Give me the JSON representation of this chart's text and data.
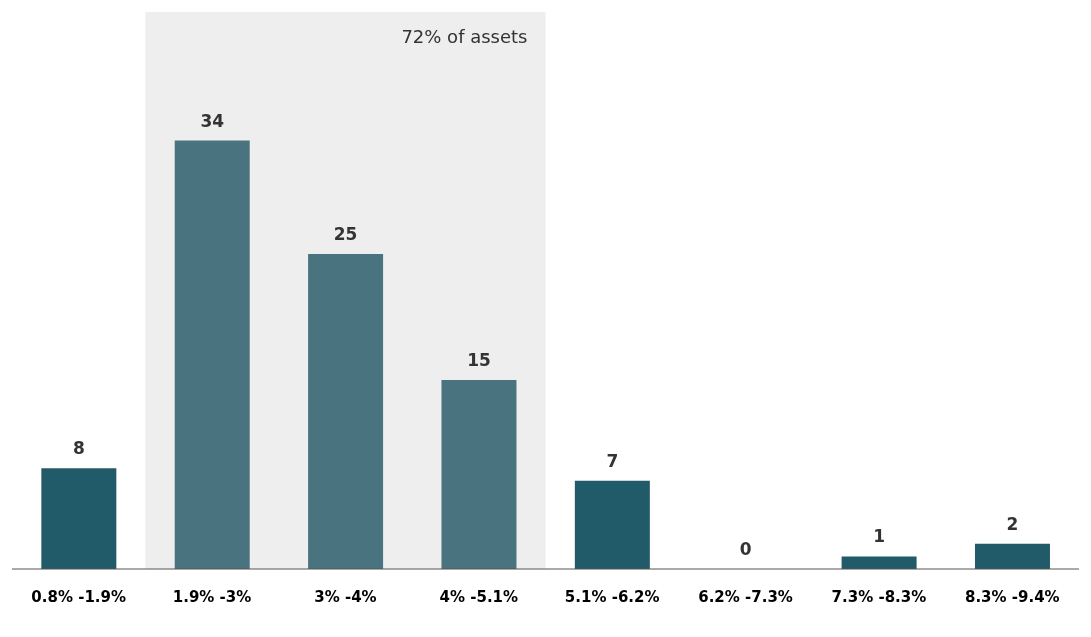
{
  "chart_data": {
    "type": "bar",
    "categories": [
      "0.8% -1.9%",
      "1.9% -3%",
      "3% -4%",
      "4% -5.1%",
      "5.1% -6.2%",
      "6.2% -7.3%",
      "7.3% -8.3%",
      "8.3% -9.4%"
    ],
    "values": [
      8,
      34,
      25,
      15,
      7,
      0,
      1,
      2
    ],
    "colors": [
      "#215a69",
      "#4a7380",
      "#4a7380",
      "#4a7380",
      "#215a69",
      "#215a69",
      "#215a69",
      "#215a69"
    ],
    "data_labels": true,
    "bands": [
      {
        "axis": "x",
        "from": "1.9% -3%",
        "to": "4% -5.1%",
        "label": "72% of assets",
        "color": "#eeeeee"
      }
    ]
  }
}
